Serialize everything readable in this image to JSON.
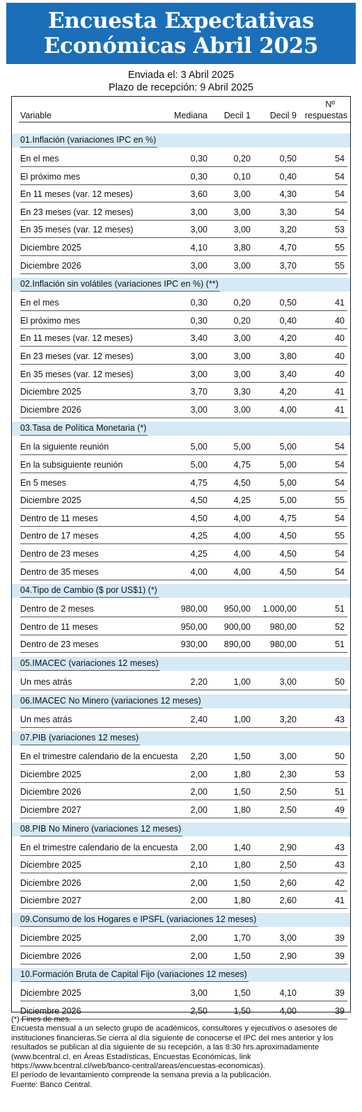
{
  "title_line1": "Encuesta Expectativas",
  "title_line2": "Económicas Abril 2025",
  "sent": "Enviada el: 3 Abril 2025",
  "deadline": "Plazo de recepción: 9 Abril 2025",
  "columns": {
    "variable": "Variable",
    "mediana": "Mediana",
    "decil1": "Decil 1",
    "decil9": "Decil 9",
    "n_line1": "Nº",
    "n_line2": "respuestas"
  },
  "sections": [
    {
      "title": "01.Inflación (variaciones IPC en %)",
      "rows": [
        [
          "En el mes",
          "0,30",
          "0,20",
          "0,50",
          "54"
        ],
        [
          "El próximo mes",
          "0,30",
          "0,10",
          "0,40",
          "54"
        ],
        [
          "En 11 meses (var. 12 meses)",
          "3,60",
          "3,00",
          "4,30",
          "54"
        ],
        [
          "En 23 meses (var. 12 meses)",
          "3,00",
          "3,00",
          "3,30",
          "54"
        ],
        [
          "En 35 meses (var. 12 meses)",
          "3,00",
          "3,00",
          "3,20",
          "53"
        ],
        [
          "Diciembre 2025",
          "4,10",
          "3,80",
          "4,70",
          "55"
        ],
        [
          "Diciembre 2026",
          "3,00",
          "3,00",
          "3,70",
          "55"
        ]
      ]
    },
    {
      "title": "02.Inflación sin volátiles (variaciones IPC en %) (**)",
      "rows": [
        [
          "En el mes",
          "0,30",
          "0,20",
          "0,50",
          "41"
        ],
        [
          "El próximo mes",
          "0,30",
          "0,20",
          "0,40",
          "40"
        ],
        [
          "En 11 meses (var. 12 meses)",
          "3,40",
          "3,00",
          "4,20",
          "40"
        ],
        [
          "En 23 meses (var. 12 meses)",
          "3,00",
          "3,00",
          "3,80",
          "40"
        ],
        [
          "En 35 meses (var. 12 meses)",
          "3,00",
          "3,00",
          "3,40",
          "40"
        ],
        [
          "Diciembre 2025",
          "3,70",
          "3,30",
          "4,20",
          "41"
        ],
        [
          "Diciembre 2026",
          "3,00",
          "3,00",
          "4,00",
          "41"
        ]
      ]
    },
    {
      "title": "03.Tasa de Política Monetaria  (*)",
      "rows": [
        [
          "En la siguiente reunión",
          "5,00",
          "5,00",
          "5,00",
          "54"
        ],
        [
          "En la subsiguiente reunión",
          "5,00",
          "4,75",
          "5,00",
          "54"
        ],
        [
          "En 5 meses",
          "4,75",
          "4,50",
          "5,00",
          "54"
        ],
        [
          "Diciembre 2025",
          "4,50",
          "4,25",
          "5,00",
          "55"
        ],
        [
          "Dentro de 11 meses",
          "4,50",
          "4,00",
          "4,75",
          "54"
        ],
        [
          "Dentro de 17 meses",
          "4,25",
          "4,00",
          "4,50",
          "55"
        ],
        [
          "Dentro de 23 meses",
          "4,25",
          "4,00",
          "4,50",
          "54"
        ],
        [
          "Dentro de 35 meses",
          "4,00",
          "4,00",
          "4,50",
          "54"
        ]
      ]
    },
    {
      "title": "04.Tipo de Cambio  ($ por US$1) (*)",
      "rows": [
        [
          "Dentro de 2 meses",
          "980,00",
          "950,00",
          "1.000,00",
          "51"
        ],
        [
          "Dentro de 11 meses",
          "950,00",
          "900,00",
          "980,00",
          "52"
        ],
        [
          "Dentro de 23 meses",
          "930,00",
          "890,00",
          "980,00",
          "51"
        ]
      ]
    },
    {
      "title": "05.IMACEC  (variaciones 12 meses)",
      "rows": [
        [
          "Un mes atrás",
          "2,20",
          "1,00",
          "3,00",
          "50"
        ]
      ]
    },
    {
      "title": "06.IMACEC No Minero (variaciones 12 meses)",
      "rows": [
        [
          "Un mes atrás",
          "2,40",
          "1,00",
          "3,20",
          "43"
        ]
      ]
    },
    {
      "title": "07.PIB  (variaciones 12 meses)",
      "rows": [
        [
          "En el trimestre calendario de la encuesta",
          "2,20",
          "1,50",
          "3,00",
          "50"
        ],
        [
          "Diciembre 2025",
          "2,00",
          "1,80",
          "2,30",
          "53"
        ],
        [
          "Diciembre 2026",
          "2,00",
          "1,50",
          "2,50",
          "51"
        ],
        [
          "Diciembre 2027",
          "2,00",
          "1,80",
          "2,50",
          "49"
        ]
      ]
    },
    {
      "title": "08.PIB No Minero (variaciones 12 meses)",
      "rows": [
        [
          "En el trimestre calendario de la encuesta",
          "2,00",
          "1,40",
          "2,90",
          "43"
        ],
        [
          "Diciembre 2025",
          "2,10",
          "1,80",
          "2,50",
          "43"
        ],
        [
          "Diciembre 2026",
          "2,00",
          "1,50",
          "2,60",
          "42"
        ],
        [
          "Diciembre 2027",
          "2,00",
          "1,80",
          "2,60",
          "41"
        ]
      ]
    },
    {
      "title": "09.Consumo de los Hogares e IPSFL  (variaciones 12 meses)",
      "rows": [
        [
          "Diciembre 2025",
          "2,00",
          "1,70",
          "3,00",
          "39"
        ],
        [
          "Diciembre 2026",
          "2,00",
          "1,50",
          "2,90",
          "39"
        ]
      ]
    },
    {
      "title": "10.Formación Bruta de Capital Fijo  (variaciones 12 meses)",
      "rows": [
        [
          "Diciembre 2025",
          "3,00",
          "1,50",
          "4,10",
          "39"
        ],
        [
          "Diciembre 2026",
          "2,50",
          "1,50",
          "4,00",
          "39"
        ]
      ]
    }
  ],
  "notes": [
    "(*) Fines de mes.",
    "Encuesta mensual a un selecto grupo de académicos, consultores y ejecutivos o asesores de instituciones financieras.Se cierra al día siguiente de conocerse el IPC del mes anterior y los resultados se publican al día siguiente de su recepción, a las 8:30 hrs.aproximadamente (www.bcentral.cl, en Áreas Estadísticas, Encuestas Económicas, link https://www.bcentral.cl/web/banco-central/areas/encuestas-economicas).",
    "El período de levantamiento comprende la semana previa a la publicación.",
    "Fuente: Banco Central."
  ]
}
